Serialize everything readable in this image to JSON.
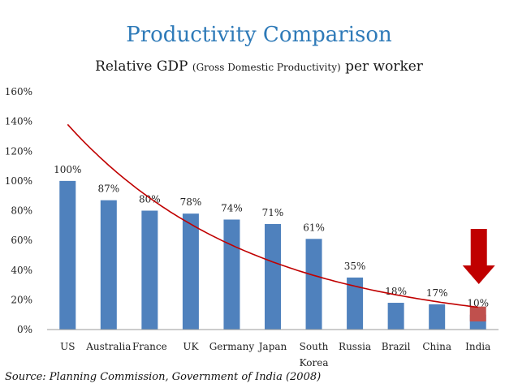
{
  "title": "Productivity Comparison",
  "subtitle_main": "Relative GDP",
  "subtitle_paren": "(Gross Domestic Productivity)",
  "subtitle_tail": "per worker",
  "source": "Source: Planning Commission, Government of India (2008)",
  "colors": {
    "title": "#2E7AB8",
    "bar": "#4F81BD",
    "highlight_bar": "#C0504D",
    "trend_line": "#C00000",
    "arrow": "#C00000"
  },
  "chart_data": {
    "type": "bar",
    "categories": [
      "US",
      "Australia",
      "France",
      "UK",
      "Germany",
      "Japan",
      "South Korea",
      "Russia",
      "Brazil",
      "China",
      "India"
    ],
    "category_lines": [
      [
        "US"
      ],
      [
        "Australia"
      ],
      [
        "France"
      ],
      [
        "UK"
      ],
      [
        "Germany"
      ],
      [
        "Japan"
      ],
      [
        "South",
        "Korea"
      ],
      [
        "Russia"
      ],
      [
        "Brazil"
      ],
      [
        "China"
      ],
      [
        "India"
      ]
    ],
    "values": [
      100,
      87,
      80,
      78,
      74,
      71,
      61,
      35,
      18,
      17,
      10
    ],
    "data_labels": [
      "100%",
      "87%",
      "80%",
      "78%",
      "74%",
      "71%",
      "61%",
      "35%",
      "18%",
      "17%",
      "10%"
    ],
    "ylim": [
      0,
      160
    ],
    "yticks": [
      0,
      20,
      40,
      60,
      80,
      100,
      120,
      140,
      160
    ],
    "ytick_labels": [
      "0%",
      "20%",
      "40%",
      "60%",
      "80%",
      "100%",
      "120%",
      "140%",
      "160%"
    ],
    "highlight_category": "India",
    "trendline": {
      "type": "exponential",
      "start_value": 138,
      "end_value": 15
    },
    "annotation": {
      "type": "down-arrow",
      "category": "India"
    },
    "grid": false,
    "legend": "none"
  }
}
